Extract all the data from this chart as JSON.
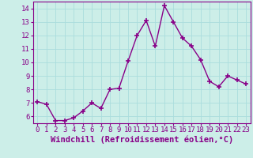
{
  "x": [
    0,
    1,
    2,
    3,
    4,
    5,
    6,
    7,
    8,
    9,
    10,
    11,
    12,
    13,
    14,
    15,
    16,
    17,
    18,
    19,
    20,
    21,
    22,
    23
  ],
  "y": [
    7.1,
    6.9,
    5.7,
    5.7,
    5.9,
    6.4,
    7.0,
    6.6,
    8.0,
    8.1,
    10.1,
    12.0,
    13.1,
    11.2,
    14.2,
    13.0,
    11.8,
    11.2,
    10.2,
    8.6,
    8.2,
    9.0,
    8.7,
    8.4
  ],
  "line_color": "#880088",
  "marker": "+",
  "markersize": 4,
  "linewidth": 1.0,
  "xlabel": "Windchill (Refroidissement éolien,°C)",
  "xlabel_fontsize": 7.5,
  "background_color": "#cceee8",
  "grid_color": "#aadddd",
  "ylim": [
    5.5,
    14.5
  ],
  "xlim": [
    -0.5,
    23.5
  ],
  "yticks": [
    6,
    7,
    8,
    9,
    10,
    11,
    12,
    13,
    14
  ],
  "xticks": [
    0,
    1,
    2,
    3,
    4,
    5,
    6,
    7,
    8,
    9,
    10,
    11,
    12,
    13,
    14,
    15,
    16,
    17,
    18,
    19,
    20,
    21,
    22,
    23
  ],
  "tick_fontsize": 6.5,
  "spine_color": "#880088",
  "tick_color": "#880088"
}
